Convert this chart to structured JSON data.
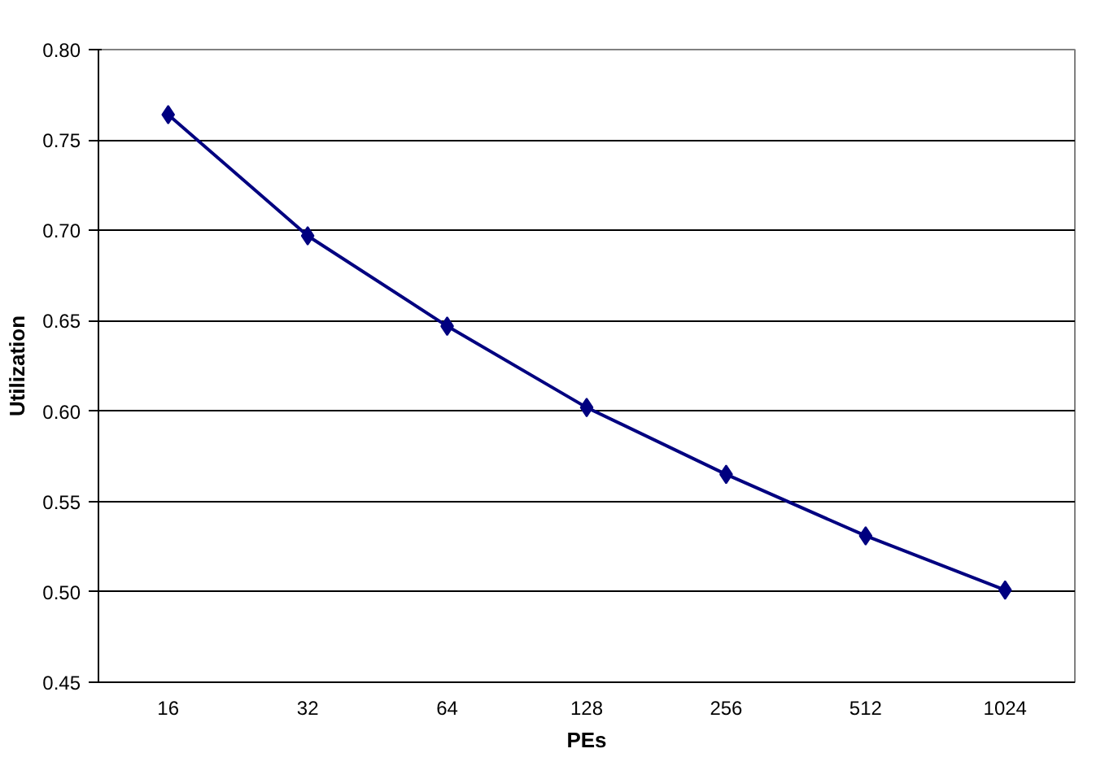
{
  "chart_data": {
    "type": "line",
    "xlabel": "PEs",
    "ylabel": "Utilization",
    "categories": [
      "16",
      "32",
      "64",
      "128",
      "256",
      "512",
      "1024"
    ],
    "series": [
      {
        "color": "#000080",
        "values": [
          0.764,
          0.697,
          0.647,
          0.602,
          0.565,
          0.531,
          0.501
        ]
      }
    ],
    "ylim": [
      0.45,
      0.8
    ],
    "yticks": [
      {
        "value": 0.45,
        "label": "0.45"
      },
      {
        "value": 0.5,
        "label": "0.50"
      },
      {
        "value": 0.55,
        "label": "0.55"
      },
      {
        "value": 0.6,
        "label": "0.60"
      },
      {
        "value": 0.65,
        "label": "0.65"
      },
      {
        "value": 0.7,
        "label": "0.70"
      },
      {
        "value": 0.75,
        "label": "0.75"
      },
      {
        "value": 0.8,
        "label": "0.80"
      }
    ],
    "grid": "y",
    "marker": "diamond",
    "line_style": "solid"
  }
}
